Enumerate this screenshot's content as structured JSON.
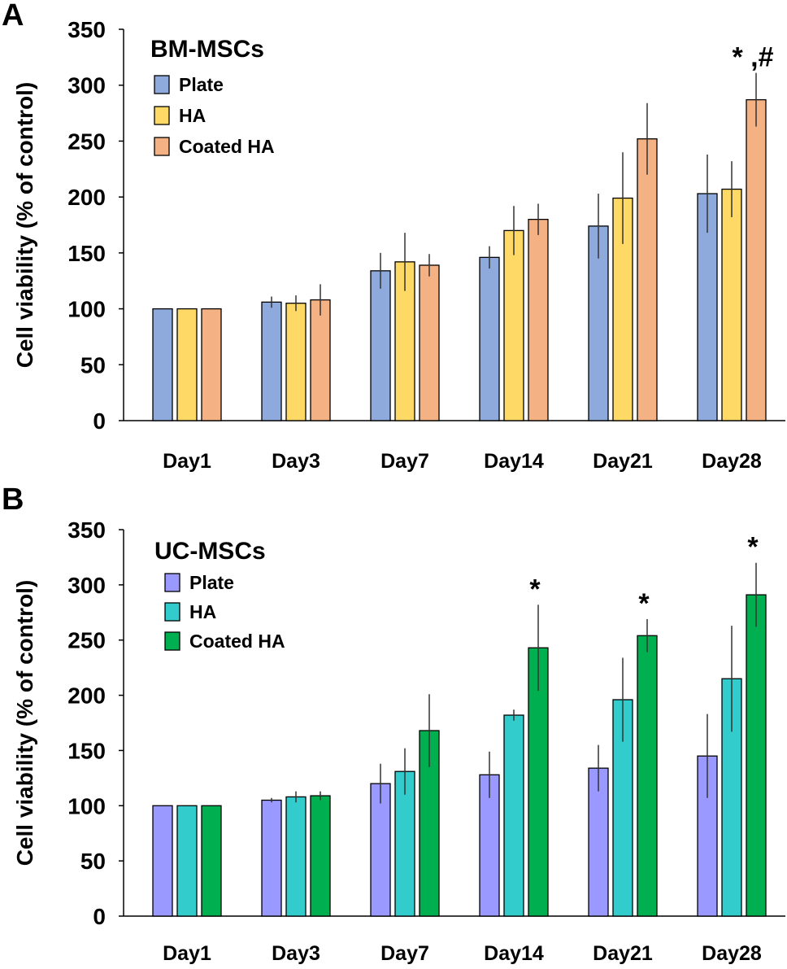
{
  "chart_data": [
    {
      "panel_label": "A",
      "type": "bar",
      "title": "BM-MSCs",
      "ylabel": "Cell viability (% of control)",
      "xlabel": "",
      "ylim": [
        0,
        350
      ],
      "yticks": [
        "0",
        "50",
        "100",
        "150",
        "200",
        "250",
        "300",
        "350"
      ],
      "categories": [
        "Day1",
        "Day3",
        "Day7",
        "Day14",
        "Day21",
        "Day28"
      ],
      "legend_position": "top-left",
      "series": [
        {
          "name": "Plate",
          "color": "#8EA9DB",
          "values": [
            100,
            106,
            134,
            146,
            174,
            203
          ],
          "errors": [
            0,
            5,
            16,
            10,
            29,
            35
          ]
        },
        {
          "name": "HA",
          "color": "#FFD966",
          "values": [
            100,
            105,
            142,
            170,
            199,
            207
          ],
          "errors": [
            0,
            7,
            26,
            22,
            41,
            25
          ]
        },
        {
          "name": "Coated HA",
          "color": "#F4B183",
          "values": [
            100,
            108,
            139,
            180,
            252,
            287
          ],
          "errors": [
            0,
            14,
            10,
            14,
            32,
            24
          ]
        }
      ],
      "annotations": [
        {
          "text": "* ,#",
          "category": "Day28",
          "series": "Coated HA"
        }
      ]
    },
    {
      "panel_label": "B",
      "type": "bar",
      "title": "UC-MSCs",
      "ylabel": "Cell viability (% of control)",
      "xlabel": "",
      "ylim": [
        0,
        350
      ],
      "yticks": [
        "0",
        "50",
        "100",
        "150",
        "200",
        "250",
        "300",
        "350"
      ],
      "categories": [
        "Day1",
        "Day3",
        "Day7",
        "Day14",
        "Day21",
        "Day28"
      ],
      "legend_position": "top-left",
      "series": [
        {
          "name": "Plate",
          "color": "#9999FF",
          "values": [
            100,
            105,
            120,
            128,
            134,
            145
          ],
          "errors": [
            0,
            2,
            18,
            21,
            21,
            38
          ]
        },
        {
          "name": "HA",
          "color": "#33CCCC",
          "values": [
            100,
            108,
            131,
            182,
            196,
            215
          ],
          "errors": [
            0,
            5,
            21,
            5,
            38,
            48
          ]
        },
        {
          "name": "Coated HA",
          "color": "#00B050",
          "values": [
            100,
            109,
            168,
            243,
            254,
            291
          ],
          "errors": [
            0,
            4,
            33,
            39,
            15,
            29
          ]
        }
      ],
      "annotations": [
        {
          "text": "*",
          "category": "Day14",
          "series": "Coated HA"
        },
        {
          "text": "*",
          "category": "Day21",
          "series": "Coated HA"
        },
        {
          "text": "*",
          "category": "Day28",
          "series": "Coated HA"
        }
      ]
    }
  ]
}
